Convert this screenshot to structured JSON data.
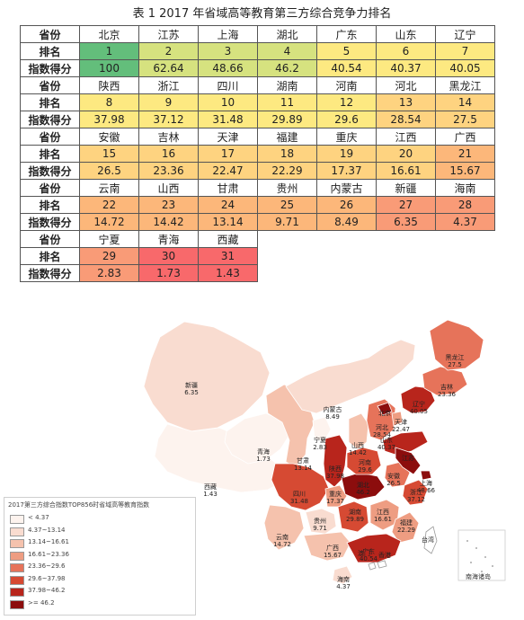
{
  "page_title": "表 1   2017 年省域高等教育第三方综合竞争力排名",
  "row_labels": {
    "province": "省份",
    "rank": "排名",
    "score": "指数得分"
  },
  "colors": {
    "table_scale": [
      "#63be7b",
      "#a8d27f",
      "#d6e27f",
      "#fde981",
      "#fed380",
      "#fcb77a",
      "#f99b77",
      "#f8696b"
    ],
    "map_scale": [
      "#fdf3ee",
      "#f9dcd0",
      "#f5c2ad",
      "#ee9d82",
      "#e6735a",
      "#d64a33",
      "#b8251c",
      "#8c0d0d"
    ]
  },
  "chart_data": [
    {
      "type": "table",
      "title": "表 1   2017 年省域高等教育第三方综合竞争力排名",
      "columns": [
        "省份",
        "排名",
        "指数得分"
      ],
      "rows": [
        [
          "北京",
          "1",
          "100"
        ],
        [
          "江苏",
          "2",
          "62.64"
        ],
        [
          "上海",
          "3",
          "48.66"
        ],
        [
          "湖北",
          "4",
          "46.2"
        ],
        [
          "广东",
          "5",
          "40.54"
        ],
        [
          "山东",
          "6",
          "40.37"
        ],
        [
          "辽宁",
          "7",
          "40.05"
        ],
        [
          "陕西",
          "8",
          "37.98"
        ],
        [
          "浙江",
          "9",
          "37.12"
        ],
        [
          "四川",
          "10",
          "31.48"
        ],
        [
          "湖南",
          "11",
          "29.89"
        ],
        [
          "河南",
          "12",
          "29.6"
        ],
        [
          "河北",
          "13",
          "28.54"
        ],
        [
          "黑龙江",
          "14",
          "27.5"
        ],
        [
          "安徽",
          "15",
          "26.5"
        ],
        [
          "吉林",
          "16",
          "23.36"
        ],
        [
          "天津",
          "17",
          "22.47"
        ],
        [
          "福建",
          "18",
          "22.29"
        ],
        [
          "重庆",
          "19",
          "17.37"
        ],
        [
          "江西",
          "20",
          "16.61"
        ],
        [
          "广西",
          "21",
          "15.67"
        ],
        [
          "云南",
          "22",
          "14.72"
        ],
        [
          "山西",
          "23",
          "14.42"
        ],
        [
          "甘肃",
          "24",
          "13.14"
        ],
        [
          "贵州",
          "25",
          "9.71"
        ],
        [
          "内蒙古",
          "26",
          "8.49"
        ],
        [
          "新疆",
          "27",
          "6.35"
        ],
        [
          "海南",
          "28",
          "4.37"
        ],
        [
          "宁夏",
          "29",
          "2.83"
        ],
        [
          "青海",
          "30",
          "1.73"
        ],
        [
          "西藏",
          "31",
          "1.43"
        ]
      ]
    },
    {
      "type": "heatmap",
      "title": "2017第三方综合指数TOP856时省域高等教育指数",
      "legend_position": "bottom-left",
      "legend": [
        "< 4.37",
        "4.37~13.14",
        "13.14~16.61",
        "16.61~23.36",
        "23.36~29.6",
        "29.6~37.98",
        "37.98~46.2",
        ">= 46.2"
      ],
      "regions": [
        {
          "name": "新疆",
          "value": "6.35",
          "level": 1
        },
        {
          "name": "西藏",
          "value": "1.43",
          "level": 0
        },
        {
          "name": "青海",
          "value": "1.73",
          "level": 0
        },
        {
          "name": "甘肃",
          "value": "13.14",
          "level": 2
        },
        {
          "name": "内蒙古",
          "value": "8.49",
          "level": 1
        },
        {
          "name": "宁夏",
          "value": "2.83",
          "level": 0
        },
        {
          "name": "陕西",
          "value": "37.98",
          "level": 6
        },
        {
          "name": "四川",
          "value": "31.48",
          "level": 5
        },
        {
          "name": "云南",
          "value": "14.72",
          "level": 2
        },
        {
          "name": "贵州",
          "value": "9.71",
          "level": 1
        },
        {
          "name": "重庆",
          "value": "17.37",
          "level": 3
        },
        {
          "name": "广西",
          "value": "15.67",
          "level": 2
        },
        {
          "name": "湖南",
          "value": "29.89",
          "level": 5
        },
        {
          "name": "湖北",
          "value": "46.2",
          "level": 7
        },
        {
          "name": "河南",
          "value": "29.6",
          "level": 5
        },
        {
          "name": "山西",
          "value": "14.42",
          "level": 2
        },
        {
          "name": "河北",
          "value": "28.54",
          "level": 4
        },
        {
          "name": "北京",
          "value": "",
          "level": 7
        },
        {
          "name": "天津",
          "value": "22.47",
          "level": 3
        },
        {
          "name": "山东",
          "value": "40.37",
          "level": 6
        },
        {
          "name": "辽宁",
          "value": "40.05",
          "level": 6
        },
        {
          "name": "吉林",
          "value": "23.36",
          "level": 4
        },
        {
          "name": "黑龙江",
          "value": "27.5",
          "level": 4
        },
        {
          "name": "安徽",
          "value": "26.5",
          "level": 4
        },
        {
          "name": "江苏",
          "value": "",
          "level": 7
        },
        {
          "name": "上海",
          "value": "48.66",
          "level": 7
        },
        {
          "name": "浙江",
          "value": "37.12",
          "level": 5
        },
        {
          "name": "江西",
          "value": "16.61",
          "level": 3
        },
        {
          "name": "福建",
          "value": "22.29",
          "level": 3
        },
        {
          "name": "广东",
          "value": "40.54",
          "level": 6
        },
        {
          "name": "海南",
          "value": "4.37",
          "level": 1
        },
        {
          "name": "台湾",
          "value": "",
          "level": -1
        },
        {
          "name": "澳门",
          "value": "",
          "level": -1
        },
        {
          "name": "香港",
          "value": "",
          "level": -1
        }
      ],
      "inset_label": "南海诸岛"
    }
  ]
}
